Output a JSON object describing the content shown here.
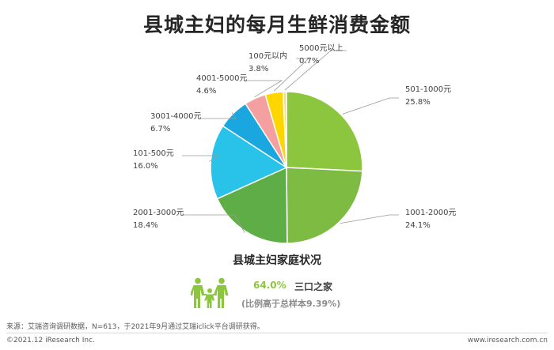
{
  "chart_data": {
    "type": "pie",
    "title": "县城主妇的每月生鲜消费金额",
    "slices": [
      {
        "label": "501-1000元",
        "value": 25.8,
        "value_text": "25.8%",
        "color": "#8cc63f"
      },
      {
        "label": "1001-2000元",
        "value": 24.1,
        "value_text": "24.1%",
        "color": "#7dbb42"
      },
      {
        "label": "2001-3000元",
        "value": 18.4,
        "value_text": "18.4%",
        "color": "#5fad46"
      },
      {
        "label": "101-500元",
        "value": 16.0,
        "value_text": "16.0%",
        "color": "#29c3ea"
      },
      {
        "label": "3001-4000元",
        "value": 6.7,
        "value_text": "6.7%",
        "color": "#1aa7e0"
      },
      {
        "label": "4001-5000元",
        "value": 4.6,
        "value_text": "4.6%",
        "color": "#f4a0a0"
      },
      {
        "label": "100元以内",
        "value": 3.8,
        "value_text": "3.8%",
        "color": "#ffd600"
      },
      {
        "label": "5000元以上",
        "value": 0.7,
        "value_text": "0.7%",
        "color": "#f7e07a"
      }
    ]
  },
  "household": {
    "title": "县城主妇家庭状况",
    "percent": "64.0%",
    "description": "三口之家",
    "note": "(比例高于总样本9.39%)",
    "icon": "family-icon",
    "icon_color": "#8cc63f"
  },
  "footer": {
    "source": "来源：艾瑞咨询调研数据，N=613，于2021年9月通过艾瑞iclick平台调研获得。",
    "copyright": "©2021.12 iResearch Inc.",
    "website": "www.iresearch.com.cn"
  }
}
